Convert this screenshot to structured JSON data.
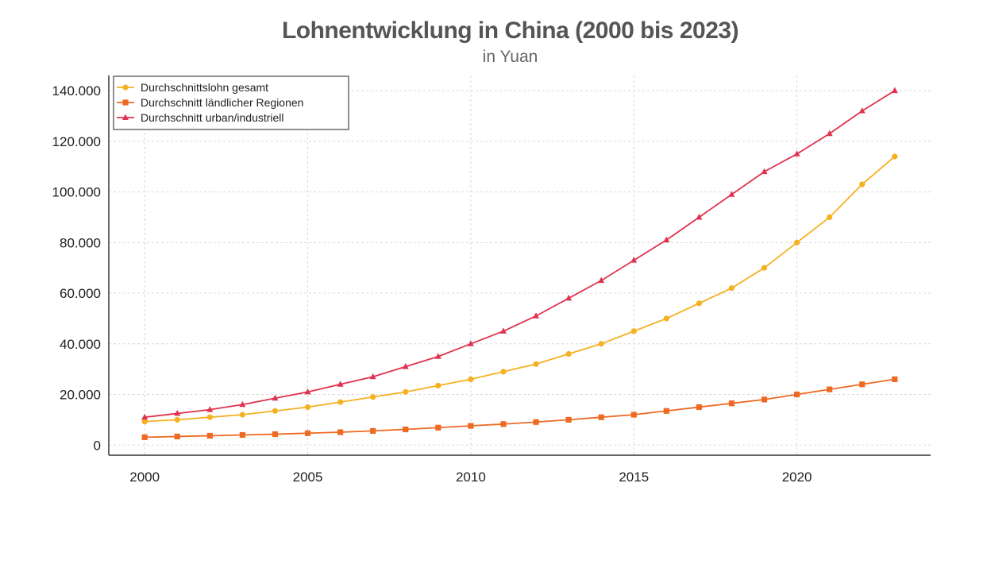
{
  "chart_data": {
    "type": "line",
    "title": "Lohnentwicklung in China (2000 bis 2023)",
    "subtitle": "in Yuan",
    "xlabel": "",
    "ylabel": "",
    "xlim": [
      1998.9,
      2024.1
    ],
    "ylim": [
      -4000,
      146000
    ],
    "x_ticks": [
      2000,
      2005,
      2010,
      2015,
      2020
    ],
    "x_tick_labels": [
      "2000",
      "2005",
      "2010",
      "2015",
      "2020"
    ],
    "y_ticks": [
      0,
      20000,
      40000,
      60000,
      80000,
      100000,
      120000,
      140000
    ],
    "y_tick_labels": [
      "0",
      "20.000",
      "40.000",
      "60.000",
      "80.000",
      "100.000",
      "120.000",
      "140.000"
    ],
    "grid": true,
    "legend_position": "top-left",
    "x": [
      2000,
      2001,
      2002,
      2003,
      2004,
      2005,
      2006,
      2007,
      2008,
      2009,
      2010,
      2011,
      2012,
      2013,
      2014,
      2015,
      2016,
      2017,
      2018,
      2019,
      2020,
      2021,
      2022,
      2023
    ],
    "series": [
      {
        "name": "Durchschnittslohn gesamt",
        "color": "#f5b120",
        "marker": "circle",
        "values": [
          9300,
          10000,
          11000,
          12000,
          13500,
          15000,
          17000,
          19000,
          21000,
          23500,
          26000,
          29000,
          32000,
          36000,
          40000,
          45000,
          50000,
          56000,
          62000,
          70000,
          80000,
          90000,
          103000,
          114000
        ]
      },
      {
        "name": "Durchschnitt ländlicher Regionen",
        "color": "#ee6a23",
        "marker": "square",
        "values": [
          3100,
          3400,
          3700,
          4000,
          4300,
          4700,
          5100,
          5600,
          6200,
          6900,
          7600,
          8300,
          9100,
          10000,
          11000,
          12000,
          13500,
          15000,
          16500,
          18000,
          20000,
          22000,
          24000,
          26000
        ]
      },
      {
        "name": "Durchschnitt urban/industriell",
        "color": "#e0334f",
        "marker": "triangle",
        "values": [
          11000,
          12500,
          14000,
          16000,
          18500,
          21000,
          24000,
          27000,
          31000,
          35000,
          40000,
          45000,
          51000,
          58000,
          65000,
          73000,
          81000,
          90000,
          99000,
          108000,
          115000,
          123000,
          132000,
          140000
        ]
      }
    ]
  }
}
